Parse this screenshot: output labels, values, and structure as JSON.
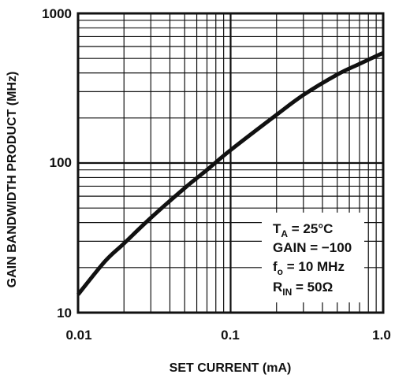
{
  "chart_data": {
    "type": "line",
    "title": "",
    "xlabel": "SET CURRENT (mA)",
    "ylabel": "GAIN BANDWIDTH PRODUCT (MHz)",
    "x_scale": "log",
    "y_scale": "log",
    "xlim": [
      0.01,
      1.0
    ],
    "ylim": [
      10,
      1000
    ],
    "grid": true,
    "x_ticks": [
      "0.01",
      "0.1",
      "1.0"
    ],
    "y_ticks": [
      "10",
      "100",
      "1000"
    ],
    "series": [
      {
        "x": [
          0.01,
          0.015,
          0.02,
          0.03,
          0.05,
          0.07,
          0.1,
          0.2,
          0.3,
          0.5,
          0.7,
          1.0
        ],
        "y": [
          13.2,
          22,
          29,
          43,
          68,
          90,
          122,
          210,
          285,
          390,
          460,
          545
        ]
      }
    ],
    "annotation": {
      "ta_main": "T",
      "ta_sub": "A",
      "ta_rest": " = 25°C",
      "gain": "GAIN = −100",
      "f_main": "f",
      "f_sub": "o",
      "f_rest": " = 10 MHz",
      "rin_main": "R",
      "rin_sub": "IN",
      "rin_rest": " = 50Ω"
    },
    "colors": {
      "line": "#111111",
      "grid": "#111111",
      "background": "#ffffff"
    }
  }
}
